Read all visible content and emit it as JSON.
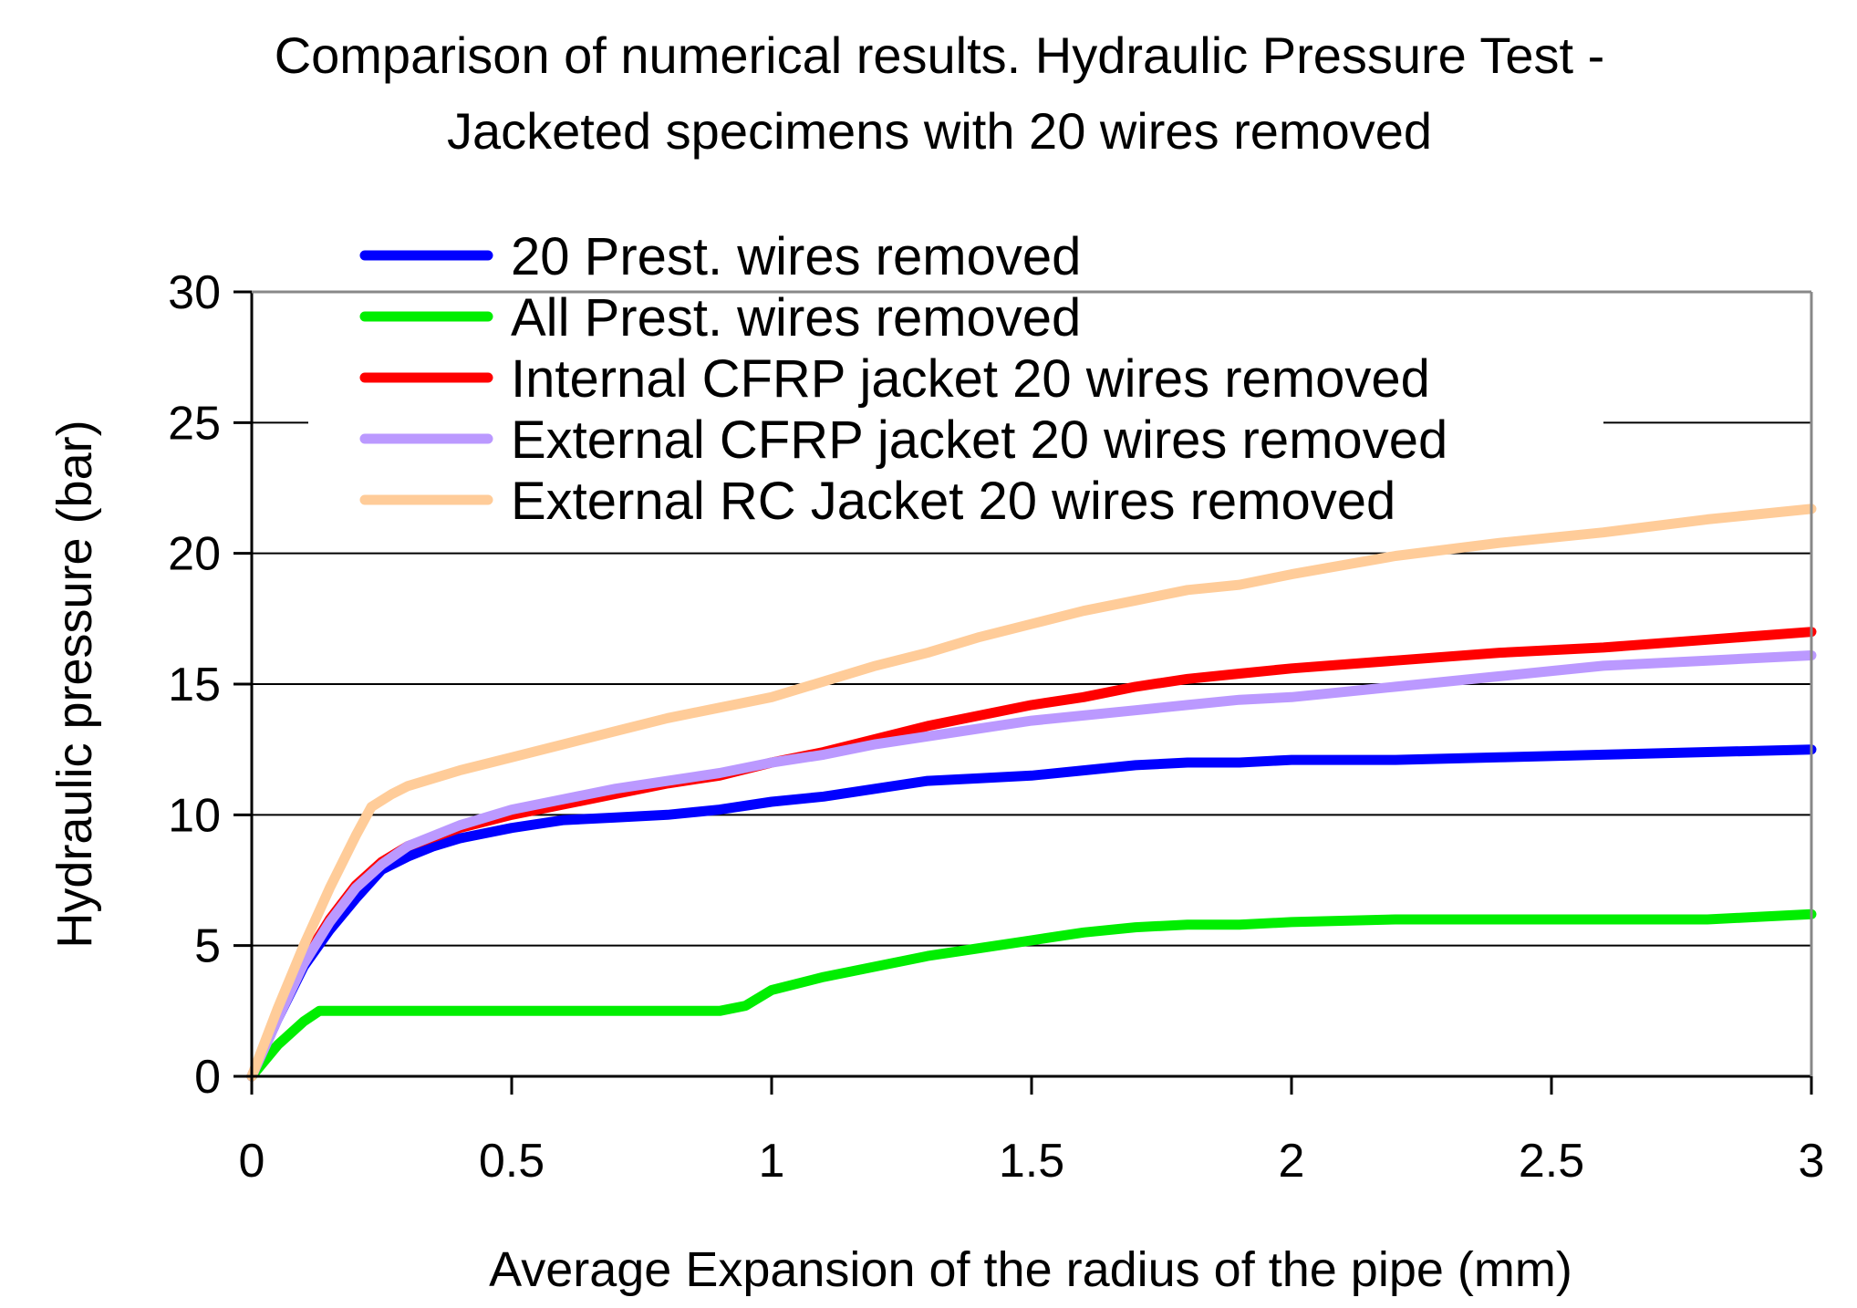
{
  "chart_data": {
    "type": "line",
    "title": [
      "Comparison of numerical results. Hydraulic Pressure Test -",
      "Jacketed specimens with 20 wires removed"
    ],
    "xlabel": "Average Expansion of the radius of the pipe (mm)",
    "ylabel": "Hydraulic pressure (bar)",
    "xlim": [
      0,
      3
    ],
    "ylim": [
      0,
      30
    ],
    "xticks": [
      0,
      0.5,
      1,
      1.5,
      2,
      2.5,
      3
    ],
    "xtick_labels": [
      "0",
      "0.5",
      "1",
      "1.5",
      "2",
      "2.5",
      "3"
    ],
    "yticks": [
      0,
      5,
      10,
      15,
      20,
      25,
      30
    ],
    "ytick_labels": [
      "0",
      "5",
      "10",
      "15",
      "20",
      "25",
      "30"
    ],
    "grid": "horizontal",
    "legend_position": "top-left",
    "series": [
      {
        "name": "20 Prest. wires removed",
        "color": "#0000ff",
        "x": [
          0,
          0.05,
          0.1,
          0.15,
          0.2,
          0.25,
          0.3,
          0.35,
          0.4,
          0.5,
          0.6,
          0.7,
          0.8,
          0.9,
          1.0,
          1.1,
          1.2,
          1.3,
          1.4,
          1.5,
          1.6,
          1.7,
          1.8,
          1.9,
          2.0,
          2.2,
          2.4,
          2.6,
          2.8,
          3.0
        ],
        "y": [
          0,
          2.2,
          4.2,
          5.6,
          6.8,
          7.9,
          8.4,
          8.8,
          9.1,
          9.5,
          9.8,
          9.9,
          10.0,
          10.2,
          10.5,
          10.7,
          11.0,
          11.3,
          11.4,
          11.5,
          11.7,
          11.9,
          12.0,
          12.0,
          12.1,
          12.1,
          12.2,
          12.3,
          12.4,
          12.5
        ]
      },
      {
        "name": "All Prest. wires removed",
        "color": "#00ee00",
        "x": [
          0,
          0.05,
          0.1,
          0.13,
          0.3,
          0.5,
          0.7,
          0.9,
          0.95,
          1.0,
          1.1,
          1.2,
          1.3,
          1.4,
          1.5,
          1.6,
          1.7,
          1.8,
          1.9,
          2.0,
          2.2,
          2.4,
          2.6,
          2.8,
          2.9,
          3.0
        ],
        "y": [
          0,
          1.2,
          2.1,
          2.5,
          2.5,
          2.5,
          2.5,
          2.5,
          2.7,
          3.3,
          3.8,
          4.2,
          4.6,
          4.9,
          5.2,
          5.5,
          5.7,
          5.8,
          5.8,
          5.9,
          6.0,
          6.0,
          6.0,
          6.0,
          6.1,
          6.2
        ]
      },
      {
        "name": "Internal CFRP jacket 20 wires removed",
        "color": "#ff0000",
        "x": [
          0,
          0.05,
          0.1,
          0.15,
          0.2,
          0.25,
          0.3,
          0.4,
          0.5,
          0.6,
          0.7,
          0.8,
          0.9,
          1.0,
          1.1,
          1.2,
          1.3,
          1.4,
          1.5,
          1.6,
          1.7,
          1.8,
          1.9,
          2.0,
          2.2,
          2.4,
          2.6,
          2.8,
          3.0
        ],
        "y": [
          0,
          2.3,
          4.4,
          6.0,
          7.3,
          8.2,
          8.8,
          9.5,
          10.0,
          10.4,
          10.8,
          11.2,
          11.5,
          12.0,
          12.4,
          12.9,
          13.4,
          13.8,
          14.2,
          14.5,
          14.9,
          15.2,
          15.4,
          15.6,
          15.9,
          16.2,
          16.4,
          16.7,
          17.0
        ]
      },
      {
        "name": "External CFRP jacket 20 wires removed",
        "color": "#bb99ff",
        "x": [
          0,
          0.05,
          0.1,
          0.15,
          0.2,
          0.25,
          0.3,
          0.4,
          0.5,
          0.6,
          0.7,
          0.8,
          0.9,
          1.0,
          1.1,
          1.2,
          1.3,
          1.4,
          1.5,
          1.6,
          1.7,
          1.8,
          1.9,
          2.0,
          2.2,
          2.4,
          2.6,
          2.8,
          3.0
        ],
        "y": [
          0,
          2.2,
          4.3,
          5.9,
          7.2,
          8.1,
          8.8,
          9.6,
          10.2,
          10.6,
          11.0,
          11.3,
          11.6,
          12.0,
          12.3,
          12.7,
          13.0,
          13.3,
          13.6,
          13.8,
          14.0,
          14.2,
          14.4,
          14.5,
          14.9,
          15.3,
          15.7,
          15.9,
          16.1
        ]
      },
      {
        "name": "External RC Jacket 20 wires removed",
        "color": "#ffcc99",
        "x": [
          0,
          0.05,
          0.1,
          0.15,
          0.2,
          0.23,
          0.27,
          0.3,
          0.4,
          0.5,
          0.6,
          0.7,
          0.8,
          0.9,
          1.0,
          1.1,
          1.2,
          1.3,
          1.4,
          1.5,
          1.6,
          1.7,
          1.8,
          1.9,
          2.0,
          2.2,
          2.4,
          2.6,
          2.8,
          3.0
        ],
        "y": [
          0,
          2.6,
          5.0,
          7.2,
          9.2,
          10.3,
          10.8,
          11.1,
          11.7,
          12.2,
          12.7,
          13.2,
          13.7,
          14.1,
          14.5,
          15.1,
          15.7,
          16.2,
          16.8,
          17.3,
          17.8,
          18.2,
          18.6,
          18.8,
          19.2,
          19.9,
          20.4,
          20.8,
          21.3,
          21.7
        ]
      }
    ]
  }
}
